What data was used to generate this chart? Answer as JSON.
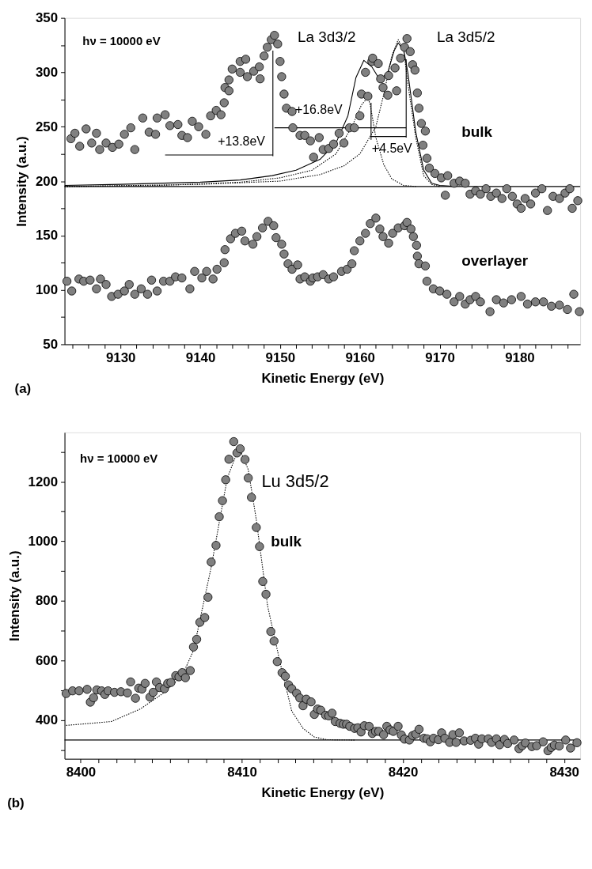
{
  "chart_data": [
    {
      "type": "scatter",
      "title": "(a)",
      "xlabel": "Kinetic Energy (eV)",
      "ylabel": "Intensity (a.u.)",
      "xlim": [
        9123,
        9187.6
      ],
      "ylim": [
        50,
        350
      ],
      "xticks": [
        {
          "value": 9124,
          "label": null
        },
        {
          "value": 9126,
          "label": null
        },
        {
          "value": 9128,
          "label": null
        },
        9130,
        {
          "value": 9132,
          "label": null
        },
        {
          "value": 9134,
          "label": null
        },
        {
          "value": 9136,
          "label": null
        },
        {
          "value": 9138,
          "label": null
        },
        9140,
        {
          "value": 9142,
          "label": null
        },
        {
          "value": 9144,
          "label": null
        },
        {
          "value": 9146,
          "label": null
        },
        {
          "value": 9148,
          "label": null
        },
        9150,
        {
          "value": 9152,
          "label": null
        },
        {
          "value": 9154,
          "label": null
        },
        {
          "value": 9156,
          "label": null
        },
        {
          "value": 9158,
          "label": null
        },
        9160,
        {
          "value": 9162,
          "label": null
        },
        {
          "value": 9164,
          "label": null
        },
        {
          "value": 9166,
          "label": null
        },
        {
          "value": 9168,
          "label": null
        },
        9170,
        {
          "value": 9172,
          "label": null
        },
        {
          "value": 9174,
          "label": null
        },
        {
          "value": 9176,
          "label": null
        },
        {
          "value": 9178,
          "label": null
        },
        9180,
        {
          "value": 9182,
          "label": null
        },
        {
          "value": 9184,
          "label": null
        },
        {
          "value": 9186,
          "label": null
        }
      ],
      "yticks": [
        50,
        {
          "value": 75,
          "label": null
        },
        100,
        {
          "value": 125,
          "label": null
        },
        150,
        {
          "value": 175,
          "label": null
        },
        200,
        {
          "value": 225,
          "label": null
        },
        250,
        {
          "value": 275,
          "label": null
        },
        300,
        {
          "value": 325,
          "label": null
        },
        350
      ],
      "marker": "circle",
      "series": [
        {
          "color": "#808080",
          "x": [
            9123.8,
            9124.3,
            9124.9,
            9125.7,
            9126.4,
            9127.0,
            9127.4,
            9128.2,
            9129.0,
            9129.8,
            9130.5,
            9131.3,
            9131.8,
            9132.8,
            9133.6,
            9134.4,
            9134.6,
            9135.6,
            9136.2,
            9137.2,
            9137.7,
            9138.4,
            9139.0,
            9139.8,
            9140.7,
            9141.3,
            9142.0,
            9142.6,
            9143.0,
            9143.1,
            9143.6,
            9143.6,
            9144.0,
            9145.0,
            9145.0,
            9145.7,
            9145.9,
            9146.7,
            9147.4,
            9147.5,
            9148.0,
            9148.4,
            9148.9,
            9149.3,
            9149.7,
            9150.0,
            9150.2,
            9150.5,
            9150.8,
            9151.5,
            9151.6,
            9152.5,
            9153.1,
            9153.8,
            9154.2,
            9154.9,
            9155.4,
            9156.1,
            9156.7,
            9157.4,
            9158.0,
            9158.7,
            9159.3,
            9160.0,
            9160.2,
            9160.7,
            9161.0,
            9161.5,
            9161.6,
            9162.3,
            9162.6,
            9162.9,
            9163.5,
            9163.6,
            9164.4,
            9164.6,
            9165.1,
            9165.6,
            9165.9,
            9166.3,
            9166.6,
            9166.9,
            9167.2,
            9167.4,
            9167.7,
            9167.9,
            9168.2,
            9168.4,
            9168.7,
            9169.4,
            9170.2,
            9170.7,
            9171.0,
            9171.8,
            9172.5,
            9173.2,
            9173.8,
            9174.5,
            9175.1,
            9175.8,
            9176.4,
            9177.1,
            9177.8,
            9178.4,
            9179.1,
            9179.7,
            9180.2,
            9180.7,
            9181.4,
            9182.0,
            9182.8,
            9183.5,
            9184.2,
            9185.0,
            9185.7,
            9186.3,
            9186.6,
            9187.3
          ],
          "values": [
            239,
            244,
            232,
            248,
            235,
            244,
            229,
            235,
            231,
            234,
            243,
            249,
            229,
            258,
            245,
            243,
            258,
            261,
            251,
            252,
            242,
            240,
            255,
            250,
            243,
            260,
            265,
            261,
            272,
            286,
            283,
            293,
            303,
            310,
            300,
            312,
            296,
            301,
            305,
            294,
            315,
            323,
            330,
            334,
            326,
            310,
            296,
            280,
            267,
            264,
            249,
            242,
            242,
            237,
            222,
            240,
            229,
            230,
            234,
            244,
            235,
            249,
            249,
            260,
            280,
            300,
            278,
            310,
            313,
            308,
            294,
            286,
            279,
            297,
            304,
            283,
            313,
            323,
            331,
            319,
            307,
            302,
            281,
            267,
            253,
            233,
            246,
            221,
            212,
            207,
            203,
            187,
            205,
            198,
            200,
            198,
            188,
            191,
            188,
            193,
            186,
            189,
            184,
            193,
            186,
            179,
            175,
            184,
            179,
            189,
            193,
            173,
            186,
            184,
            189,
            193,
            175,
            182
          ]
        },
        {
          "color": "#808080",
          "x": [
            9123.3,
            9123.9,
            9124.8,
            9125.4,
            9126.2,
            9127.0,
            9127.5,
            9128.2,
            9128.9,
            9129.7,
            9130.5,
            9131.1,
            9131.8,
            9132.6,
            9133.4,
            9133.9,
            9134.6,
            9135.4,
            9136.2,
            9136.9,
            9137.7,
            9138.7,
            9139.3,
            9140.2,
            9140.8,
            9141.6,
            9142.1,
            9143.0,
            9143.1,
            9143.8,
            9144.4,
            9145.2,
            9145.6,
            9146.6,
            9147.1,
            9147.8,
            9148.5,
            9149.2,
            9149.5,
            9150.2,
            9150.5,
            9151.0,
            9151.5,
            9152.2,
            9152.5,
            9153.1,
            9153.8,
            9154.1,
            9154.7,
            9155.4,
            9156.1,
            9156.7,
            9157.7,
            9158.4,
            9159.0,
            9159.3,
            9160.0,
            9160.7,
            9161.3,
            9162.0,
            9162.5,
            9162.9,
            9163.6,
            9164.1,
            9164.8,
            9165.6,
            9165.9,
            9166.4,
            9166.7,
            9167.1,
            9167.2,
            9167.4,
            9168.2,
            9168.4,
            9169.2,
            9170.0,
            9170.9,
            9171.8,
            9172.5,
            9173.2,
            9173.8,
            9174.5,
            9175.1,
            9176.3,
            9177.1,
            9178.0,
            9179.0,
            9180.2,
            9181.0,
            9182.0,
            9183.0,
            9184.0,
            9185.0,
            9186.0,
            9186.8,
            9187.5
          ],
          "values": [
            108,
            99,
            110,
            108,
            109,
            101,
            110,
            105,
            94,
            96,
            99,
            105,
            96,
            101,
            96,
            109,
            99,
            108,
            108,
            112,
            111,
            101,
            117,
            111,
            117,
            110,
            119,
            125,
            137,
            147,
            152,
            154,
            145,
            142,
            149,
            157,
            163,
            159,
            148,
            142,
            133,
            124,
            119,
            123,
            110,
            112,
            108,
            111,
            112,
            114,
            110,
            112,
            117,
            119,
            124,
            136,
            145,
            152,
            161,
            166,
            156,
            149,
            143,
            152,
            157,
            159,
            162,
            156,
            149,
            141,
            131,
            124,
            122,
            108,
            101,
            99,
            96,
            89,
            94,
            87,
            91,
            94,
            89,
            80,
            91,
            88,
            91,
            94,
            87,
            89,
            89,
            85,
            86,
            82,
            96,
            80
          ]
        },
        {
          "type": "line",
          "color": "#000000",
          "marker": "none",
          "line_style": "solid",
          "x": [
            9123,
            9130,
            9140,
            9145,
            9149,
            9152,
            9155,
            9157,
            9158.5,
            9159.5,
            9160.5,
            9161.5,
            9162.5,
            9163.5,
            9164.3,
            9164.8,
            9165.5,
            9166,
            9167,
            9168,
            9169,
            9170,
            9172
          ],
          "values": [
            196,
            197,
            199,
            201,
            205,
            210,
            220,
            235,
            260,
            295,
            311,
            305,
            293,
            300,
            320,
            327,
            320,
            300,
            245,
            210,
            198,
            196,
            195
          ]
        },
        {
          "type": "line",
          "color": "#000000",
          "marker": "none",
          "line_style": "dotted",
          "x": [
            9123,
            9135,
            9145,
            9150,
            9154,
            9157,
            9159,
            9160.2,
            9161,
            9161.3,
            9162,
            9163,
            9164,
            9165.5,
            9167
          ],
          "values": [
            195,
            196,
            199,
            203,
            210,
            225,
            250,
            270,
            277,
            270,
            240,
            215,
            202,
            196,
            195
          ]
        },
        {
          "type": "line",
          "color": "#000000",
          "marker": "none",
          "line_style": "dotted",
          "x": [
            9123,
            9140,
            9150,
            9155,
            9158,
            9160,
            9162,
            9163,
            9164,
            9164.8,
            9165.5,
            9166,
            9167,
            9168,
            9169,
            9170
          ],
          "values": [
            195,
            197,
            200,
            206,
            214,
            225,
            250,
            280,
            315,
            330,
            320,
            290,
            240,
            205,
            197,
            195
          ]
        },
        {
          "type": "line",
          "color": "#000000",
          "marker": "none",
          "line_style": "solid",
          "x": [
            9149.1,
            9149.1
          ],
          "values": [
            223,
            320
          ]
        },
        {
          "type": "line",
          "color": "#000000",
          "marker": "none",
          "line_style": "solid",
          "x": [
            9135.6,
            9149.1
          ],
          "values": [
            224,
            224
          ]
        },
        {
          "type": "line",
          "color": "#000000",
          "marker": "none",
          "line_style": "solid",
          "x": [
            9149.3,
            9165.8
          ],
          "values": [
            249,
            249
          ]
        },
        {
          "type": "line",
          "color": "#000000",
          "marker": "none",
          "line_style": "solid",
          "x": [
            9161.4,
            9165.8
          ],
          "values": [
            241,
            241
          ]
        },
        {
          "type": "line",
          "color": "#000000",
          "marker": "none",
          "line_style": "solid",
          "x": [
            9161.4,
            9161.4
          ],
          "values": [
            238,
            272
          ]
        },
        {
          "type": "line",
          "color": "#000000",
          "marker": "none",
          "line_style": "solid",
          "x": [
            9165.8,
            9165.8
          ],
          "values": [
            240,
            312
          ]
        }
      ],
      "ref_lines": [
        {
          "axis": "y",
          "value": 195,
          "color": "#000000"
        }
      ],
      "annotations": [
        "hν = 10000 eV",
        "La 3d3/2",
        "La 3d5/2",
        "bulk",
        "overlayer",
        "+13.8eV",
        "+16.8eV",
        "+4.5eV"
      ]
    },
    {
      "type": "scatter",
      "title": "(b)",
      "xlabel": "Kinetic Energy (eV)",
      "ylabel": "Intensity (a.u.)",
      "xlim": [
        8399,
        8431
      ],
      "ylim": [
        270,
        1365
      ],
      "xticks": [
        8400,
        {
          "value": 8401.11,
          "label": null
        },
        {
          "value": 8402.22,
          "label": null
        },
        {
          "value": 8403.33,
          "label": null
        },
        {
          "value": 8404.44,
          "label": null
        },
        {
          "value": 8405.56,
          "label": null
        },
        {
          "value": 8406.67,
          "label": null
        },
        {
          "value": 8407.78,
          "label": null
        },
        {
          "value": 8408.89,
          "label": null
        },
        8410,
        {
          "value": 8411.11,
          "label": null
        },
        {
          "value": 8412.22,
          "label": null
        },
        {
          "value": 8413.33,
          "label": null
        },
        {
          "value": 8414.44,
          "label": null
        },
        {
          "value": 8415.56,
          "label": null
        },
        {
          "value": 8416.67,
          "label": null
        },
        {
          "value": 8417.78,
          "label": null
        },
        {
          "value": 8418.89,
          "label": null
        },
        8420,
        {
          "value": 8421.11,
          "label": null
        },
        {
          "value": 8422.22,
          "label": null
        },
        {
          "value": 8423.33,
          "label": null
        },
        {
          "value": 8424.44,
          "label": null
        },
        {
          "value": 8425.56,
          "label": null
        },
        {
          "value": 8426.67,
          "label": null
        },
        {
          "value": 8427.78,
          "label": null
        },
        {
          "value": 8428.89,
          "label": null
        },
        8430
      ],
      "yticks": [
        {
          "value": 300,
          "label": null
        },
        400,
        {
          "value": 500,
          "label": null
        },
        600,
        {
          "value": 700,
          "label": null
        },
        800,
        {
          "value": 900,
          "label": null
        },
        1000,
        {
          "value": 1100,
          "label": null
        },
        1200,
        {
          "value": 1300,
          "label": null
        }
      ],
      "marker": "circle",
      "series": [
        {
          "color": "#808080",
          "x": [
            8399.1,
            8399.5,
            8399.9,
            8400.4,
            8400.6,
            8400.8,
            8401.0,
            8401.3,
            8401.5,
            8401.7,
            8402.1,
            8402.5,
            8402.9,
            8403.1,
            8403.4,
            8403.6,
            8403.8,
            8404.0,
            8404.3,
            8404.5,
            8404.7,
            8404.9,
            8405.2,
            8405.4,
            8405.6,
            8405.9,
            8406.1,
            8406.3,
            8406.5,
            8406.8,
            8407.0,
            8407.2,
            8407.4,
            8407.7,
            8407.9,
            8408.1,
            8408.4,
            8408.6,
            8408.8,
            8409.0,
            8409.2,
            8409.5,
            8409.7,
            8409.9,
            8410.2,
            8410.4,
            8410.6,
            8410.9,
            8411.1,
            8411.3,
            8411.5,
            8411.8,
            8412.0,
            8412.2,
            8412.5,
            8412.7,
            8412.9,
            8413.1,
            8413.4,
            8413.6,
            8413.8,
            8414.0,
            8414.3,
            8414.5,
            8414.7,
            8414.9,
            8415.2,
            8415.4,
            8415.6,
            8415.8,
            8416.1,
            8416.3,
            8416.5,
            8416.7,
            8417.0,
            8417.2,
            8417.4,
            8417.6,
            8417.9,
            8418.1,
            8418.3,
            8418.5,
            8418.8,
            8419.0,
            8419.2,
            8419.4,
            8419.7,
            8419.9,
            8420.1,
            8420.4,
            8420.6,
            8420.8,
            8421.0,
            8421.3,
            8421.5,
            8421.7,
            8421.9,
            8422.2,
            8422.4,
            8422.6,
            8422.9,
            8423.1,
            8423.3,
            8423.5,
            8423.8,
            8424.2,
            8424.5,
            8424.7,
            8424.9,
            8425.3,
            8425.5,
            8425.8,
            8426.0,
            8426.3,
            8426.5,
            8426.9,
            8427.2,
            8427.4,
            8427.6,
            8428.0,
            8428.3,
            8428.7,
            8429.0,
            8429.2,
            8429.4,
            8429.7,
            8430.1,
            8430.4,
            8430.8
          ],
          "values": [
            489,
            498,
            498,
            503,
            460,
            475,
            501,
            498,
            486,
            498,
            493,
            495,
            491,
            528,
            473,
            507,
            504,
            523,
            477,
            493,
            528,
            509,
            505,
            523,
            526,
            549,
            545,
            559,
            542,
            566,
            645,
            671,
            728,
            744,
            812,
            930,
            986,
            1082,
            1136,
            1206,
            1275,
            1334,
            1296,
            1310,
            1274,
            1212,
            1147,
            1046,
            982,
            865,
            822,
            697,
            665,
            596,
            559,
            547,
            518,
            505,
            490,
            474,
            448,
            470,
            461,
            419,
            437,
            433,
            416,
            414,
            423,
            395,
            389,
            386,
            386,
            379,
            372,
            374,
            360,
            381,
            379,
            355,
            362,
            362,
            351,
            379,
            367,
            362,
            379,
            350,
            336,
            333,
            348,
            353,
            369,
            339,
            337,
            327,
            339,
            334,
            357,
            339,
            325,
            351,
            325,
            357,
            330,
            332,
            339,
            319,
            337,
            337,
            325,
            337,
            317,
            335,
            321,
            333,
            304,
            314,
            323,
            311,
            314,
            327,
            297,
            308,
            316,
            313,
            333,
            306,
            324
          ]
        },
        {
          "type": "line",
          "color": "#000000",
          "marker": "none",
          "line_style": "dotted",
          "x": [
            8399.1,
            8401.9,
            8403.7,
            8405.2,
            8406.3,
            8407.0,
            8408.1,
            8409.1,
            8409.7,
            8409.9,
            8410.4,
            8410.9,
            8411.6,
            8412.4,
            8413.1,
            8413.8,
            8414.5,
            8415.3,
            8417
          ],
          "values": [
            382,
            395,
            437,
            493,
            549,
            633,
            913,
            1212,
            1296,
            1305,
            1240,
            1072,
            783,
            587,
            430,
            372,
            343,
            334,
            333
          ]
        }
      ],
      "ref_lines": [
        {
          "axis": "y",
          "value": 333,
          "color": "#000000"
        }
      ],
      "annotations": [
        "hν = 10000 eV",
        "Lu 3d5/2",
        "bulk"
      ]
    }
  ]
}
